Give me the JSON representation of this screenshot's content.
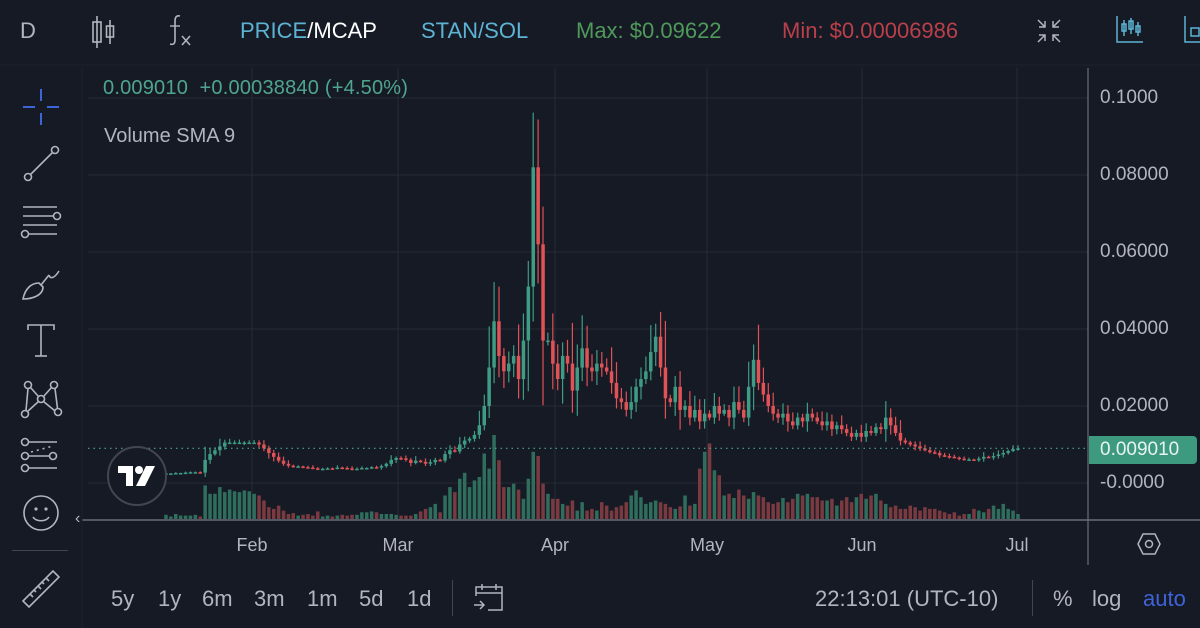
{
  "topbar": {
    "interval": "D",
    "price_label": "PRICE",
    "slash": "/",
    "mcap_label": "MCAP",
    "pair": "STAN/SOL",
    "max_label": "Max: $0.09622",
    "min_label": "Min: $0.00006986",
    "colors": {
      "price": "#5db3d3",
      "pair": "#5db3d3",
      "max": "#4f9a5a",
      "min": "#b9404a"
    }
  },
  "legend": {
    "ohlc_line": "0.009010  +0.00038840 (+4.50%)",
    "volume_label": "Volume SMA 9"
  },
  "price_tag": "0.009010",
  "bottombar": {
    "ranges": [
      "5y",
      "1y",
      "6m",
      "3m",
      "1m",
      "5d",
      "1d"
    ],
    "time": "22:13:01 (UTC-10)",
    "percent": "%",
    "log": "log",
    "auto": "auto"
  },
  "sidebar": {
    "tools": [
      "crosshair",
      "trend-line",
      "fib-retracement",
      "brush",
      "text",
      "pattern",
      "prediction",
      "emoji",
      "ruler"
    ]
  },
  "chart_data": {
    "type": "candlestick",
    "title": "STAN/SOL",
    "interval": "D",
    "y_ticks": [
      "0.1000",
      "0.08000",
      "0.06000",
      "0.04000",
      "0.02000",
      "-0.0000"
    ],
    "y_tick_values": [
      0.1,
      0.08,
      0.06,
      0.04,
      0.02,
      0.0
    ],
    "x_ticks": [
      "Feb",
      "Mar",
      "Apr",
      "May",
      "Jun",
      "Jul"
    ],
    "ylim": [
      -0.0095,
      0.11
    ],
    "last_price": 0.00901,
    "change": 0.0003884,
    "change_pct": 4.5,
    "max": 0.09622,
    "min": 6.986e-05,
    "up_color": "#3f9c84",
    "down_color": "#e05255",
    "close": [
      0.0025,
      0.0025,
      0.0026,
      0.0026,
      0.0027,
      0.0028,
      0.0028,
      0.0027,
      0.006,
      0.0075,
      0.0085,
      0.0095,
      0.0105,
      0.0105,
      0.0105,
      0.0105,
      0.0105,
      0.0105,
      0.0105,
      0.01,
      0.009,
      0.0078,
      0.0068,
      0.0058,
      0.005,
      0.0045,
      0.0042,
      0.0043,
      0.0041,
      0.004,
      0.0038,
      0.0036,
      0.0037,
      0.0038,
      0.0037,
      0.004,
      0.0039,
      0.0038,
      0.0036,
      0.0037,
      0.0039,
      0.0039,
      0.0041,
      0.004,
      0.0044,
      0.005,
      0.006,
      0.0065,
      0.0064,
      0.006,
      0.0052,
      0.0058,
      0.0055,
      0.005,
      0.0054,
      0.006,
      0.0058,
      0.0075,
      0.0085,
      0.0082,
      0.01,
      0.011,
      0.0115,
      0.0125,
      0.015,
      0.02,
      0.03,
      0.042,
      0.033,
      0.029,
      0.031,
      0.033,
      0.027,
      0.037,
      0.051,
      0.082,
      0.062,
      0.037,
      0.037,
      0.031,
      0.027,
      0.033,
      0.031,
      0.024,
      0.03,
      0.035,
      0.03,
      0.029,
      0.031,
      0.03,
      0.029,
      0.026,
      0.022,
      0.021,
      0.019,
      0.021,
      0.025,
      0.027,
      0.029,
      0.034,
      0.038,
      0.03,
      0.022,
      0.021,
      0.025,
      0.019,
      0.02,
      0.017,
      0.019,
      0.016,
      0.018,
      0.017,
      0.02,
      0.018,
      0.019,
      0.017,
      0.021,
      0.019,
      0.017,
      0.025,
      0.032,
      0.026,
      0.023,
      0.02,
      0.018,
      0.017,
      0.018,
      0.016,
      0.015,
      0.017,
      0.016,
      0.018,
      0.017,
      0.016,
      0.015,
      0.016,
      0.014,
      0.015,
      0.014,
      0.013,
      0.012,
      0.013,
      0.012,
      0.0135,
      0.013,
      0.0145,
      0.014,
      0.017,
      0.015,
      0.013,
      0.011,
      0.0105,
      0.01,
      0.0095,
      0.009,
      0.0085,
      0.008,
      0.0078,
      0.0072,
      0.007,
      0.0068,
      0.0066,
      0.0063,
      0.006,
      0.0061,
      0.006,
      0.0063,
      0.0068,
      0.0067,
      0.007,
      0.0074,
      0.0078,
      0.0083,
      0.0088,
      0.009
    ],
    "volume_scale_note": "volume bars in relative units 0-100",
    "volume": [
      5,
      3,
      6,
      4,
      4,
      4,
      5,
      3,
      40,
      30,
      30,
      38,
      32,
      35,
      33,
      32,
      34,
      33,
      30,
      28,
      22,
      14,
      12,
      16,
      10,
      6,
      7,
      4,
      5,
      6,
      4,
      9,
      3,
      4,
      3,
      4,
      5,
      4,
      5,
      5,
      8,
      8,
      9,
      8,
      6,
      6,
      6,
      5,
      4,
      4,
      4,
      6,
      9,
      12,
      14,
      18,
      8,
      28,
      38,
      32,
      48,
      55,
      38,
      46,
      50,
      78,
      60,
      100,
      70,
      38,
      38,
      42,
      35,
      24,
      48,
      80,
      75,
      42,
      30,
      24,
      24,
      18,
      16,
      22,
      10,
      20,
      10,
      12,
      10,
      20,
      16,
      10,
      14,
      16,
      20,
      28,
      34,
      26,
      18,
      20,
      22,
      20,
      18,
      14,
      12,
      15,
      28,
      16,
      18,
      60,
      80,
      90,
      58,
      52,
      28,
      30,
      25,
      35,
      28,
      24,
      32,
      28,
      26,
      20,
      18,
      20,
      25,
      20,
      24,
      30,
      28,
      30,
      26,
      26,
      22,
      22,
      24,
      16,
      22,
      26,
      20,
      26,
      30,
      24,
      28,
      30,
      22,
      18,
      14,
      16,
      12,
      12,
      16,
      14,
      10,
      14,
      12,
      12,
      10,
      8,
      6,
      8,
      4,
      6,
      6,
      12,
      10,
      8,
      12,
      16,
      12,
      18,
      12,
      10,
      6
    ]
  }
}
